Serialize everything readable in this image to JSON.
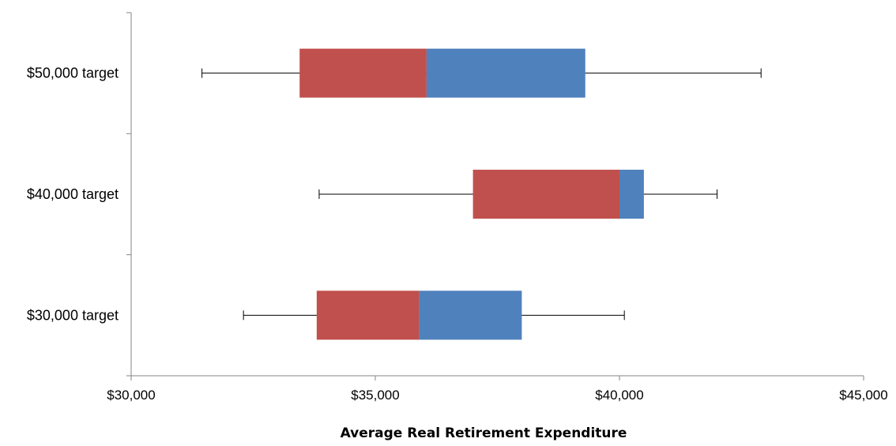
{
  "chart_data": {
    "type": "box",
    "orientation": "horizontal",
    "title": "",
    "xlabel": "Average Real Retirement Expenditure",
    "ylabel": "",
    "xlim": [
      30000,
      45000
    ],
    "x_ticks": [
      30000,
      35000,
      40000,
      45000
    ],
    "x_tick_labels": [
      "$30,000",
      "$35,000",
      "$40,000",
      "$45,000"
    ],
    "categories": [
      "$50,000 target",
      "$40,000 target",
      "$30,000 target"
    ],
    "boxes": [
      {
        "category": "$50,000 target",
        "min": 31450,
        "q1": 33450,
        "median": 36050,
        "q3": 39300,
        "max": 42900
      },
      {
        "category": "$40,000 target",
        "min": 33850,
        "q1": 37000,
        "median": 40000,
        "q3": 40500,
        "max": 42000
      },
      {
        "category": "$30,000 target",
        "min": 32300,
        "q1": 33800,
        "median": 35900,
        "q3": 38000,
        "max": 40100
      }
    ],
    "colors": {
      "lower_box": "#C0504D",
      "upper_box": "#4F81BD"
    },
    "grid": false,
    "legend": "none"
  }
}
